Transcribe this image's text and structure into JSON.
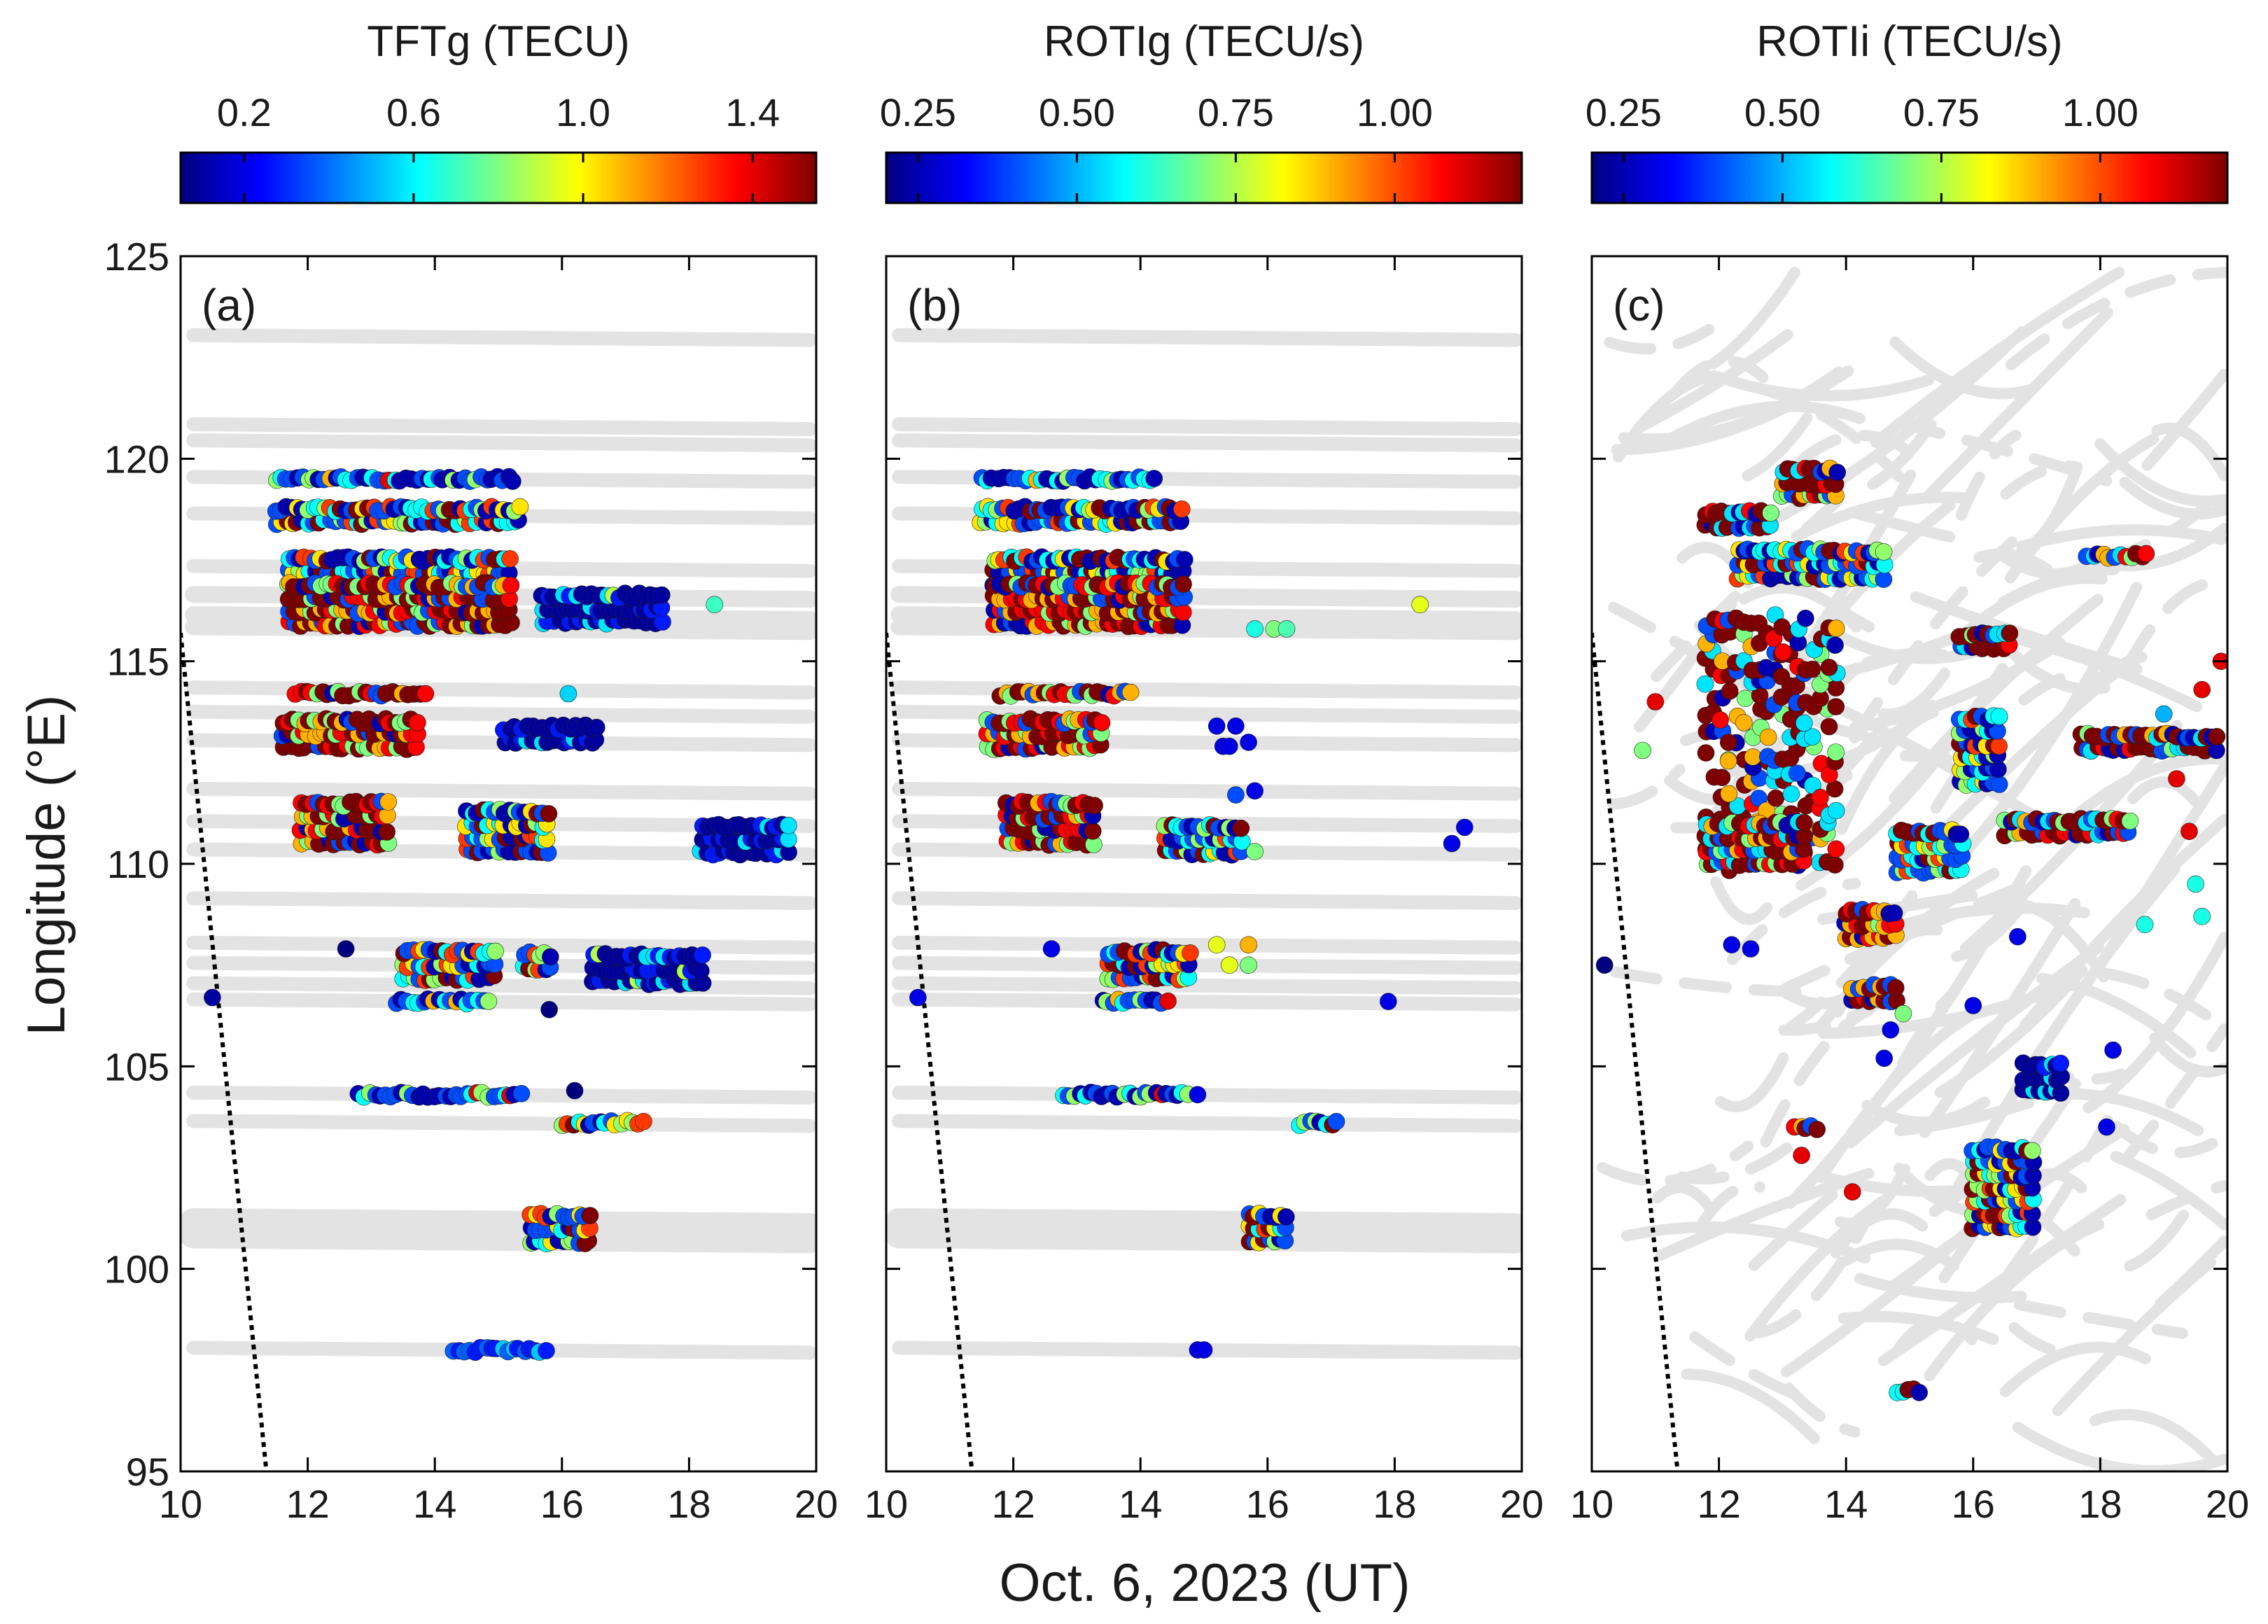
{
  "figure": {
    "xlabel": "Oct. 6, 2023 (UT)",
    "ylabel": "Longitude (°E)"
  },
  "colors": {
    "track_gray": "#e3e3e3",
    "terminator": "#000000",
    "colormap": [
      "#00007f",
      "#0000ff",
      "#007fff",
      "#00ffff",
      "#7fff7f",
      "#ffff00",
      "#ff7f00",
      "#ff0000",
      "#7f0000"
    ]
  },
  "chart_data": [
    {
      "type": "scatter",
      "panel_label": "(a)",
      "colorbar": {
        "title": "TFTg (TECU)",
        "range": [
          0.05,
          1.55
        ],
        "ticks": [
          0.2,
          0.6,
          1.0,
          1.4
        ],
        "tick_labels": [
          "0.2",
          "0.6",
          "1.0",
          "1.4"
        ]
      },
      "xlim": [
        10,
        20
      ],
      "ylim": [
        95,
        125
      ],
      "xticks": [
        10,
        12,
        14,
        16,
        18,
        20
      ],
      "yticks": [
        95,
        100,
        105,
        110,
        115,
        120,
        125
      ],
      "xtick_labels": [
        "10",
        "12",
        "14",
        "16",
        "18",
        "20"
      ],
      "ytick_labels": [
        "95",
        "100",
        "105",
        "110",
        "115",
        "120",
        "125"
      ],
      "terminator": [
        [
          10.0,
          115.7
        ],
        [
          11.35,
          95.0
        ]
      ],
      "tracks": [
        123.0,
        120.8,
        120.4,
        119.5,
        118.6,
        117.3,
        116.6,
        116.1,
        115.8,
        114.3,
        113.7,
        113.0,
        111.8,
        111.0,
        110.3,
        109.1,
        108.0,
        107.5,
        107.0,
        106.6,
        104.3,
        103.6,
        101.1,
        100.8,
        98.0
      ],
      "clusters": [
        {
          "lat": 119.5,
          "x0": 11.5,
          "x1": 15.3,
          "rows": 1,
          "cmode": "mixlow"
        },
        {
          "lat": 118.6,
          "x0": 11.5,
          "x1": 15.4,
          "rows": 2,
          "cmode": "mix"
        },
        {
          "lat": 117.2,
          "x0": 11.7,
          "x1": 15.2,
          "rows": 3,
          "cmode": "mix"
        },
        {
          "lat": 116.4,
          "x0": 11.7,
          "x1": 15.2,
          "rows": 4,
          "cmode": "high"
        },
        {
          "lat": 116.3,
          "x0": 15.7,
          "x1": 17.6,
          "rows": 3,
          "cmode": "low"
        },
        {
          "lat": 114.2,
          "x0": 11.8,
          "x1": 13.9,
          "rows": 1,
          "cmode": "high"
        },
        {
          "lat": 113.2,
          "x0": 11.6,
          "x1": 13.8,
          "rows": 3,
          "cmode": "high"
        },
        {
          "lat": 113.2,
          "x0": 15.1,
          "x1": 16.6,
          "rows": 2,
          "cmode": "low"
        },
        {
          "lat": 111.0,
          "x0": 11.9,
          "x1": 13.3,
          "rows": 4,
          "cmode": "high"
        },
        {
          "lat": 110.8,
          "x0": 14.5,
          "x1": 15.8,
          "rows": 4,
          "cmode": "mix"
        },
        {
          "lat": 110.6,
          "x0": 18.2,
          "x1": 19.6,
          "rows": 3,
          "cmode": "low"
        },
        {
          "lat": 107.5,
          "x0": 13.5,
          "x1": 15.0,
          "rows": 3,
          "cmode": "mix"
        },
        {
          "lat": 107.6,
          "x0": 15.4,
          "x1": 15.9,
          "rows": 2,
          "cmode": "mix"
        },
        {
          "lat": 107.4,
          "x0": 16.5,
          "x1": 18.2,
          "rows": 3,
          "cmode": "low"
        },
        {
          "lat": 106.6,
          "x0": 13.4,
          "x1": 14.9,
          "rows": 1,
          "cmode": "mixlow"
        },
        {
          "lat": 104.3,
          "x0": 12.8,
          "x1": 15.4,
          "rows": 1,
          "cmode": "mixlow"
        },
        {
          "lat": 103.6,
          "x0": 16.0,
          "x1": 17.3,
          "rows": 1,
          "cmode": "mix"
        },
        {
          "lat": 101.0,
          "x0": 15.5,
          "x1": 16.5,
          "rows": 3,
          "cmode": "mix"
        },
        {
          "lat": 98.0,
          "x0": 14.3,
          "x1": 15.8,
          "rows": 1,
          "cmode": "lowonly"
        }
      ],
      "points": [
        [
          10.5,
          106.7,
          0.1
        ],
        [
          18.4,
          116.4,
          0.7
        ],
        [
          12.6,
          107.9,
          0.05
        ],
        [
          15.8,
          106.4,
          0.05
        ],
        [
          16.2,
          104.4,
          0.05
        ],
        [
          16.1,
          114.2,
          0.55
        ]
      ]
    },
    {
      "type": "scatter",
      "panel_label": "(b)",
      "colorbar": {
        "title": "ROTIg (TECU/s)",
        "range": [
          0.2,
          1.2
        ],
        "ticks": [
          0.25,
          0.5,
          0.75,
          1.0
        ],
        "tick_labels": [
          "0.25",
          "0.50",
          "0.75",
          "1.00"
        ]
      },
      "xlim": [
        10,
        20
      ],
      "ylim": [
        95,
        125
      ],
      "xticks": [
        10,
        12,
        14,
        16,
        18,
        20
      ],
      "yticks": [
        95,
        100,
        105,
        110,
        115,
        120,
        125
      ],
      "xtick_labels": [
        "10",
        "12",
        "14",
        "16",
        "18",
        "20"
      ],
      "ytick_labels": [
        "95",
        "100",
        "105",
        "110",
        "115",
        "120",
        "125"
      ],
      "terminator": [
        [
          10.0,
          115.7
        ],
        [
          11.35,
          95.0
        ]
      ],
      "tracks": [
        123.0,
        120.8,
        120.4,
        119.5,
        118.6,
        117.3,
        116.6,
        116.1,
        115.8,
        114.3,
        113.7,
        113.0,
        111.8,
        111.0,
        110.3,
        109.1,
        108.0,
        107.5,
        107.0,
        106.6,
        104.3,
        103.6,
        101.1,
        100.8,
        98.0
      ],
      "clusters": [
        {
          "lat": 119.5,
          "x0": 11.5,
          "x1": 14.3,
          "rows": 1,
          "cmode": "mixlow"
        },
        {
          "lat": 118.6,
          "x0": 11.5,
          "x1": 14.7,
          "rows": 2,
          "cmode": "mix"
        },
        {
          "lat": 117.2,
          "x0": 11.7,
          "x1": 14.7,
          "rows": 3,
          "cmode": "mix"
        },
        {
          "lat": 116.4,
          "x0": 11.7,
          "x1": 14.7,
          "rows": 4,
          "cmode": "high"
        },
        {
          "lat": 114.2,
          "x0": 11.8,
          "x1": 13.9,
          "rows": 1,
          "cmode": "high"
        },
        {
          "lat": 113.2,
          "x0": 11.6,
          "x1": 13.4,
          "rows": 3,
          "cmode": "high"
        },
        {
          "lat": 111.0,
          "x0": 11.9,
          "x1": 13.3,
          "rows": 4,
          "cmode": "high"
        },
        {
          "lat": 110.6,
          "x0": 14.4,
          "x1": 15.6,
          "rows": 3,
          "cmode": "mix"
        },
        {
          "lat": 107.5,
          "x0": 13.5,
          "x1": 14.8,
          "rows": 3,
          "cmode": "mix"
        },
        {
          "lat": 106.6,
          "x0": 13.4,
          "x1": 14.5,
          "rows": 1,
          "cmode": "mixlow"
        },
        {
          "lat": 104.3,
          "x0": 12.8,
          "x1": 14.8,
          "rows": 1,
          "cmode": "mixlow"
        },
        {
          "lat": 103.6,
          "x0": 16.5,
          "x1": 17.1,
          "rows": 1,
          "cmode": "mix"
        },
        {
          "lat": 101.0,
          "x0": 15.7,
          "x1": 16.3,
          "rows": 3,
          "cmode": "mix"
        }
      ],
      "points": [
        [
          10.5,
          106.7,
          0.3
        ],
        [
          18.4,
          116.4,
          0.8
        ],
        [
          15.8,
          115.8,
          0.6
        ],
        [
          16.1,
          115.8,
          0.7
        ],
        [
          16.3,
          115.8,
          0.65
        ],
        [
          14.9,
          98.0,
          0.3
        ],
        [
          15.0,
          98.0,
          0.3
        ],
        [
          14.9,
          104.3,
          0.3
        ],
        [
          15.2,
          113.4,
          0.3
        ],
        [
          15.5,
          113.4,
          0.3
        ],
        [
          15.3,
          112.9,
          0.3
        ],
        [
          15.4,
          112.9,
          0.3
        ],
        [
          15.7,
          113.0,
          0.3
        ],
        [
          15.5,
          111.7,
          0.4
        ],
        [
          15.8,
          111.8,
          0.3
        ],
        [
          15.8,
          110.3,
          0.7
        ],
        [
          17.9,
          106.6,
          0.3
        ],
        [
          18.9,
          110.5,
          0.3
        ],
        [
          19.1,
          110.9,
          0.3
        ],
        [
          15.2,
          108.0,
          0.8
        ],
        [
          15.4,
          107.5,
          0.8
        ],
        [
          15.7,
          108.0,
          0.9
        ],
        [
          15.7,
          107.5,
          0.7
        ],
        [
          12.6,
          107.9,
          0.3
        ]
      ]
    },
    {
      "type": "scatter",
      "panel_label": "(c)",
      "colorbar": {
        "title": "ROTIi (TECU/s)",
        "range": [
          0.2,
          1.2
        ],
        "ticks": [
          0.25,
          0.5,
          0.75,
          1.0
        ],
        "tick_labels": [
          "0.25",
          "0.50",
          "0.75",
          "1.00"
        ]
      },
      "xlim": [
        10,
        20
      ],
      "ylim": [
        95,
        125
      ],
      "xticks": [
        10,
        12,
        14,
        16,
        18,
        20
      ],
      "yticks": [
        95,
        100,
        105,
        110,
        115,
        120,
        125
      ],
      "xtick_labels": [
        "10",
        "12",
        "14",
        "16",
        "18",
        "20"
      ],
      "ytick_labels": [
        "95",
        "100",
        "105",
        "110",
        "115",
        "120",
        "125"
      ],
      "terminator": [
        [
          10.0,
          115.7
        ],
        [
          11.35,
          95.0
        ]
      ],
      "tracks": [],
      "clusters": [
        {
          "lat": 113.0,
          "x0": 11.8,
          "x1": 13.9,
          "rows": 14,
          "cmode": "highmix"
        },
        {
          "lat": 110.5,
          "x0": 11.8,
          "x1": 13.4,
          "rows": 4,
          "cmode": "highmix"
        },
        {
          "lat": 108.5,
          "x0": 14.0,
          "x1": 14.8,
          "rows": 3,
          "cmode": "high"
        },
        {
          "lat": 110.3,
          "x0": 14.8,
          "x1": 15.9,
          "rows": 4,
          "cmode": "mix"
        },
        {
          "lat": 112.8,
          "x0": 15.8,
          "x1": 16.4,
          "rows": 6,
          "cmode": "mix"
        },
        {
          "lat": 102.0,
          "x0": 16.0,
          "x1": 17.0,
          "rows": 7,
          "cmode": "mix"
        },
        {
          "lat": 104.7,
          "x0": 16.8,
          "x1": 17.4,
          "rows": 3,
          "cmode": "low"
        },
        {
          "lat": 118.5,
          "x0": 11.8,
          "x1": 12.9,
          "rows": 2,
          "cmode": "highmix"
        },
        {
          "lat": 117.4,
          "x0": 12.3,
          "x1": 14.6,
          "rows": 3,
          "cmode": "mix"
        },
        {
          "lat": 119.4,
          "x0": 13.0,
          "x1": 13.9,
          "rows": 3,
          "cmode": "highmix"
        },
        {
          "lat": 115.5,
          "x0": 15.8,
          "x1": 16.6,
          "rows": 2,
          "cmode": "highmix"
        },
        {
          "lat": 97.0,
          "x0": 14.8,
          "x1": 15.2,
          "rows": 1,
          "cmode": "mix"
        },
        {
          "lat": 103.5,
          "x0": 13.2,
          "x1": 13.6,
          "rows": 1,
          "cmode": "high"
        },
        {
          "lat": 106.8,
          "x0": 14.1,
          "x1": 14.8,
          "rows": 2,
          "cmode": "high"
        },
        {
          "lat": 113.0,
          "x0": 17.7,
          "x1": 19.9,
          "rows": 2,
          "cmode": "highmix"
        },
        {
          "lat": 117.6,
          "x0": 17.8,
          "x1": 18.8,
          "rows": 1,
          "cmode": "highmix"
        },
        {
          "lat": 110.9,
          "x0": 16.5,
          "x1": 18.5,
          "rows": 2,
          "cmode": "highmix"
        }
      ],
      "points": [
        [
          10.2,
          107.5,
          0.2
        ],
        [
          10.8,
          112.8,
          0.7
        ],
        [
          11.0,
          114.0,
          1.1
        ],
        [
          13.3,
          102.8,
          1.1
        ],
        [
          14.1,
          101.9,
          1.1
        ],
        [
          12.2,
          108.0,
          0.3
        ],
        [
          12.5,
          107.9,
          0.3
        ],
        [
          14.7,
          105.9,
          0.3
        ],
        [
          16.0,
          106.5,
          0.3
        ],
        [
          16.7,
          108.2,
          0.3
        ],
        [
          18.1,
          103.5,
          0.3
        ],
        [
          18.2,
          105.4,
          0.3
        ],
        [
          18.7,
          108.5,
          0.6
        ],
        [
          19.6,
          108.7,
          0.6
        ],
        [
          19.5,
          109.5,
          0.6
        ],
        [
          19.4,
          110.8,
          1.1
        ],
        [
          19.2,
          112.1,
          1.1
        ],
        [
          19.6,
          114.3,
          1.1
        ],
        [
          19.9,
          115.0,
          1.1
        ],
        [
          19.0,
          113.7,
          0.5
        ],
        [
          14.6,
          105.2,
          0.3
        ],
        [
          14.9,
          106.3,
          0.7
        ]
      ]
    }
  ]
}
